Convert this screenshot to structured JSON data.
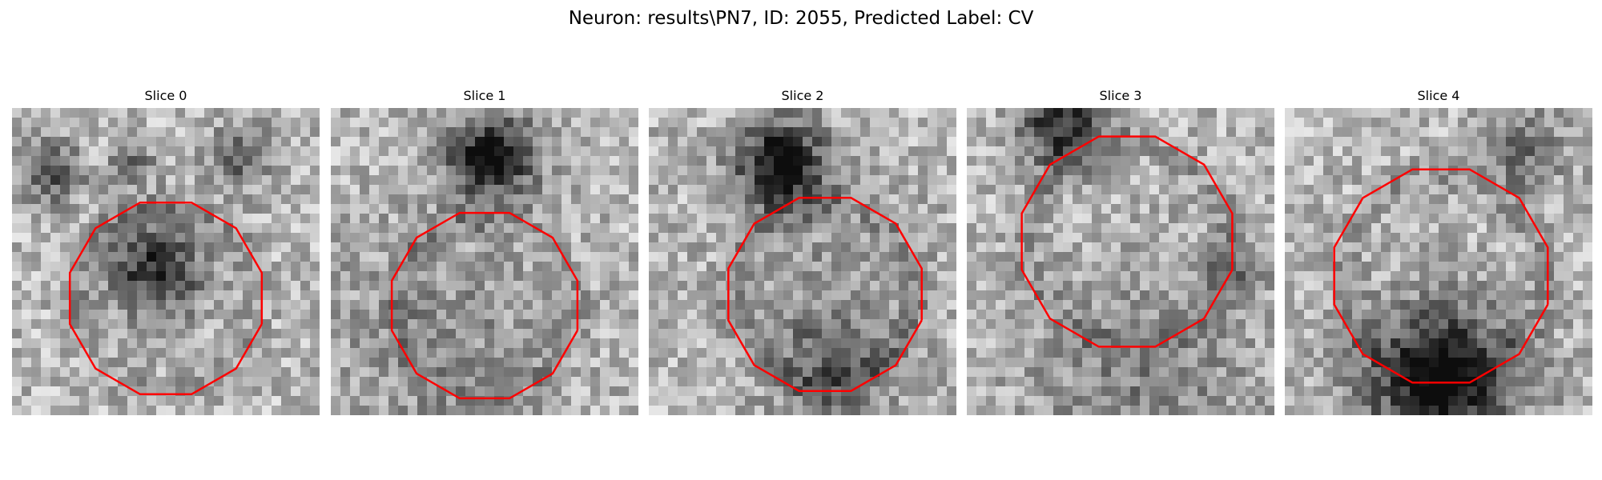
{
  "figure": {
    "title": "Neuron: results\\PN7, ID: 2055, Predicted Label: CV"
  },
  "panels": [
    {
      "title": "Slice 0",
      "contour_color": "#ff0000"
    },
    {
      "title": "Slice 1",
      "contour_color": "#ff0000"
    },
    {
      "title": "Slice 2",
      "contour_color": "#ff0000"
    },
    {
      "title": "Slice 3",
      "contour_color": "#ff0000"
    },
    {
      "title": "Slice 4",
      "contour_color": "#ff0000"
    }
  ],
  "colormap": "gray"
}
